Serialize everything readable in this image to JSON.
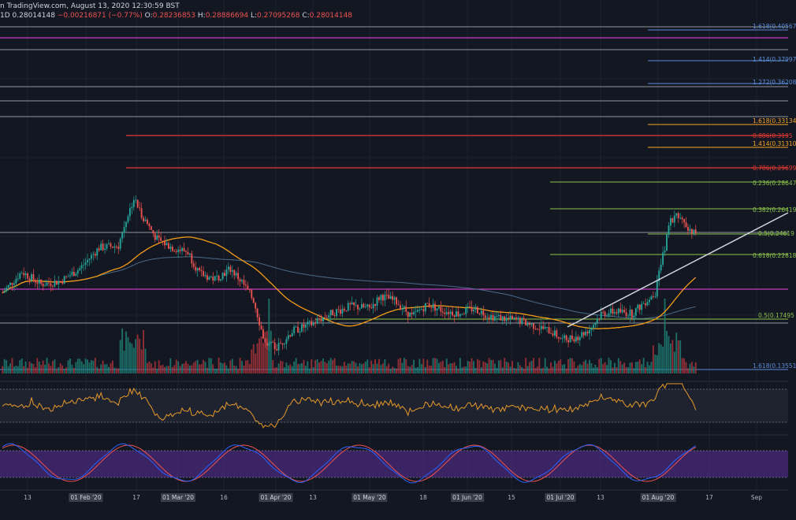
{
  "header": {
    "attribution": "n TradingView.com, August 13, 2020 12:30:59 BST",
    "interval": "1D",
    "last_price": "0.28014148",
    "change": "−0.00216871 (−0.77%)",
    "open_label": "O:",
    "open": "0.28236853",
    "high_label": "H:",
    "high": "0.28886694",
    "low_label": "L:",
    "low": "0.27095268",
    "close_label": "C:",
    "close": "0.28014148"
  },
  "fib_labels": {
    "ext_1618_top": "1.618(0.40567",
    "ext_1414_top": "1.414(0.37997",
    "ext_1272": "1.272(0.36208",
    "ext_1618_orange": "1.618(0.33134",
    "ret_886": "0.886(0.3195",
    "ext_1414_orange": "1.414(0.31310",
    "ret_786": "0.786(0.29699",
    "ret_236": "0.236(0.28647",
    "ret_382": "0.382(0.26419",
    "ret_5": "0.5(0.24619",
    "ret_618": "0.618(0.22818",
    "ret_5_low": "0.5(0.17495",
    "ext_1618_low": "1.618(0.13551"
  },
  "x_axis": {
    "labels": [
      "13",
      "01 Feb '20",
      "17",
      "01 Mar '20",
      "16",
      "01 Apr '20",
      "13",
      "01 May '20",
      "18",
      "01 Jun '20",
      "15",
      "01 Jul '20",
      "13",
      "01 Aug '20",
      "17",
      "Sep"
    ],
    "month_labels": [
      "01 Feb '20",
      "01 Mar '20",
      "01 Apr '20",
      "01 May '20",
      "01 Jun '20",
      "01 Jul '20",
      "01 Aug '20"
    ]
  },
  "colors": {
    "background": "#131722",
    "bull": "#26a69a",
    "bear": "#ef5350",
    "volume_bull": "#1e7f73",
    "volume_bear": "#a8323a",
    "ma_orange": "#f39c12",
    "ma_blue": "#4a6b8a",
    "magenta": "#c23bc2",
    "fib_red": "#e53935",
    "fib_orange": "#f5a623",
    "fib_green": "#8bc34a",
    "fib_blue": "#5b8dd6",
    "white_line": "#c8ccd4",
    "rsi": "#e69a28",
    "stoch_k": "#2962ff",
    "stoch_d": "#ef5350",
    "stoch_band": "#4a2a7a"
  },
  "chart_data": {
    "type": "candlestick",
    "symbol": "daily",
    "interval": "1D",
    "ohlc_last": {
      "open": 0.28236853,
      "high": 0.28886694,
      "low": 0.27095268,
      "close": 0.28014148
    },
    "fibonacci_levels": [
      {
        "ratio": 1.618,
        "price": 0.40567
      },
      {
        "ratio": 1.414,
        "price": 0.37997
      },
      {
        "ratio": 1.272,
        "price": 0.36208
      },
      {
        "ratio": 1.618,
        "price": 0.33134
      },
      {
        "ratio": 0.886,
        "price": 0.3195
      },
      {
        "ratio": 1.414,
        "price": 0.3131
      },
      {
        "ratio": 0.786,
        "price": 0.29699
      },
      {
        "ratio": 0.236,
        "price": 0.28647
      },
      {
        "ratio": 0.382,
        "price": 0.26419
      },
      {
        "ratio": 0.5,
        "price": 0.24619
      },
      {
        "ratio": 0.618,
        "price": 0.22818
      },
      {
        "ratio": 0.5,
        "price": 0.17495
      },
      {
        "ratio": 1.618,
        "price": 0.13551
      }
    ],
    "x_ticks": [
      "13",
      "01 Feb '20",
      "17",
      "01 Mar '20",
      "16",
      "01 Apr '20",
      "13",
      "01 May '20",
      "18",
      "01 Jun '20",
      "15",
      "01 Jul '20",
      "13",
      "01 Aug '20",
      "17",
      "Sep"
    ],
    "panels": [
      "price",
      "volume",
      "rsi",
      "stochastic-rsi"
    ],
    "grid": true
  }
}
